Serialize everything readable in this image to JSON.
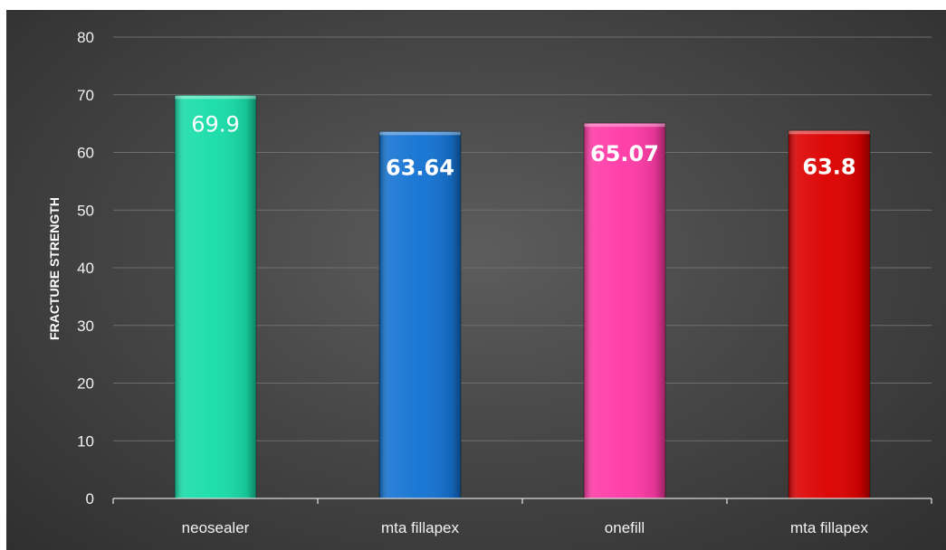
{
  "chart_data": {
    "type": "bar",
    "ylabel": "FRACTURE STRENGTH",
    "ylim": [
      0,
      80
    ],
    "yticks": [
      "0",
      "10",
      "20",
      "30",
      "40",
      "50",
      "60",
      "70",
      "80"
    ],
    "grid": true,
    "categories": [
      "neosealer",
      "mta fillapex",
      "onefill",
      "mta fillapex"
    ],
    "values": [
      69.9,
      63.64,
      65.07,
      63.8
    ],
    "data_labels": [
      "69.9",
      "63.64",
      "65.07",
      "63.8"
    ],
    "colors": [
      "#18dda8",
      "#1473d2",
      "#ff3aa6",
      "#dc0000"
    ]
  }
}
